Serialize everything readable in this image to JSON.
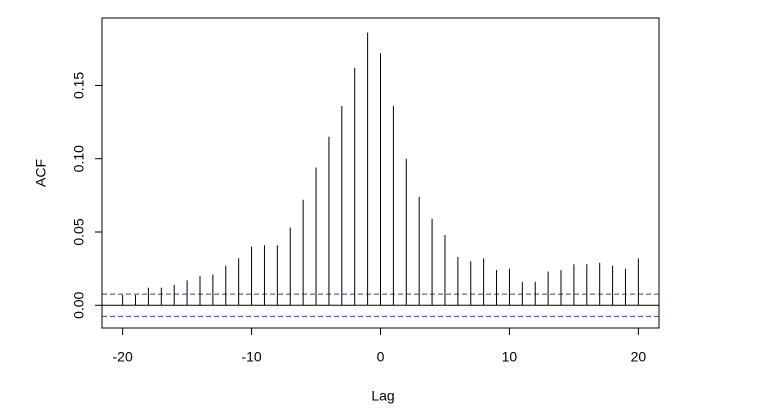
{
  "chart_data": {
    "type": "stem",
    "x_label": "Lag",
    "y_label": "ACF",
    "x": [
      -20,
      -19,
      -18,
      -17,
      -16,
      -15,
      -14,
      -13,
      -12,
      -11,
      -10,
      -9,
      -8,
      -7,
      -6,
      -5,
      -4,
      -3,
      -2,
      -1,
      0,
      1,
      2,
      3,
      4,
      5,
      6,
      7,
      8,
      9,
      10,
      11,
      12,
      13,
      14,
      15,
      16,
      17,
      18,
      19,
      20
    ],
    "values": [
      0.007,
      0.007,
      0.012,
      0.012,
      0.014,
      0.017,
      0.02,
      0.021,
      0.027,
      0.032,
      0.04,
      0.041,
      0.041,
      0.053,
      0.072,
      0.094,
      0.115,
      0.136,
      0.162,
      0.186,
      0.172,
      0.136,
      0.1,
      0.074,
      0.059,
      0.048,
      0.033,
      0.03,
      0.032,
      0.024,
      0.025,
      0.016,
      0.016,
      0.023,
      0.024,
      0.028,
      0.028,
      0.029,
      0.027,
      0.025,
      0.032
    ],
    "color": "#000000",
    "confidence_bounds": {
      "values": [
        0.0076,
        -0.0076
      ],
      "color": "#3333ee"
    },
    "xlim": [
      -21.6,
      21.6
    ],
    "xticks": [
      -20,
      -10,
      0,
      10,
      20
    ],
    "ylim": [
      -0.0155,
      0.196
    ],
    "yticks": [
      {
        "value": 0,
        "label": "0.00"
      },
      {
        "value": 0.05,
        "label": "0.05"
      },
      {
        "value": 0.1,
        "label": "0.10"
      },
      {
        "value": 0.15,
        "label": "0.15"
      }
    ]
  }
}
